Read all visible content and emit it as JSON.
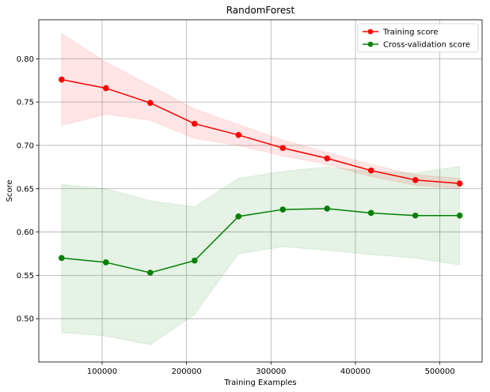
{
  "chart_data": {
    "type": "line",
    "title": "RandomForest",
    "xlabel": "Training Examples",
    "ylabel": "Score",
    "xlim": [
      25000,
      550000
    ],
    "ylim": [
      0.45,
      0.845
    ],
    "xticks": [
      100000,
      200000,
      300000,
      400000,
      500000
    ],
    "xtick_labels": [
      "100000",
      "200000",
      "300000",
      "400000",
      "500000"
    ],
    "yticks": [
      0.5,
      0.55,
      0.6,
      0.65,
      0.7,
      0.75,
      0.8
    ],
    "ytick_labels": [
      "0.50",
      "0.55",
      "0.60",
      "0.65",
      "0.70",
      "0.75",
      "0.80"
    ],
    "grid": true,
    "legend_position": "top-right",
    "x": [
      52000,
      104500,
      157000,
      209500,
      261500,
      314000,
      366500,
      418500,
      471000,
      523500
    ],
    "series": [
      {
        "name": "Training score",
        "color": "#ff0000",
        "band_color": "#ff0000",
        "values": [
          0.776,
          0.766,
          0.749,
          0.725,
          0.712,
          0.697,
          0.685,
          0.671,
          0.66,
          0.656
        ],
        "lower": [
          0.723,
          0.736,
          0.729,
          0.708,
          0.7,
          0.688,
          0.678,
          0.664,
          0.654,
          0.65
        ],
        "upper": [
          0.829,
          0.796,
          0.769,
          0.742,
          0.724,
          0.706,
          0.692,
          0.678,
          0.666,
          0.662
        ]
      },
      {
        "name": "Cross-validation score",
        "color": "#008000",
        "band_color": "#008000",
        "values": [
          0.57,
          0.565,
          0.553,
          0.567,
          0.618,
          0.626,
          0.627,
          0.622,
          0.619,
          0.619
        ],
        "lower": [
          0.484,
          0.48,
          0.47,
          0.505,
          0.575,
          0.583,
          0.579,
          0.574,
          0.57,
          0.562
        ],
        "upper": [
          0.655,
          0.65,
          0.636,
          0.629,
          0.662,
          0.67,
          0.675,
          0.67,
          0.668,
          0.676
        ]
      }
    ]
  }
}
